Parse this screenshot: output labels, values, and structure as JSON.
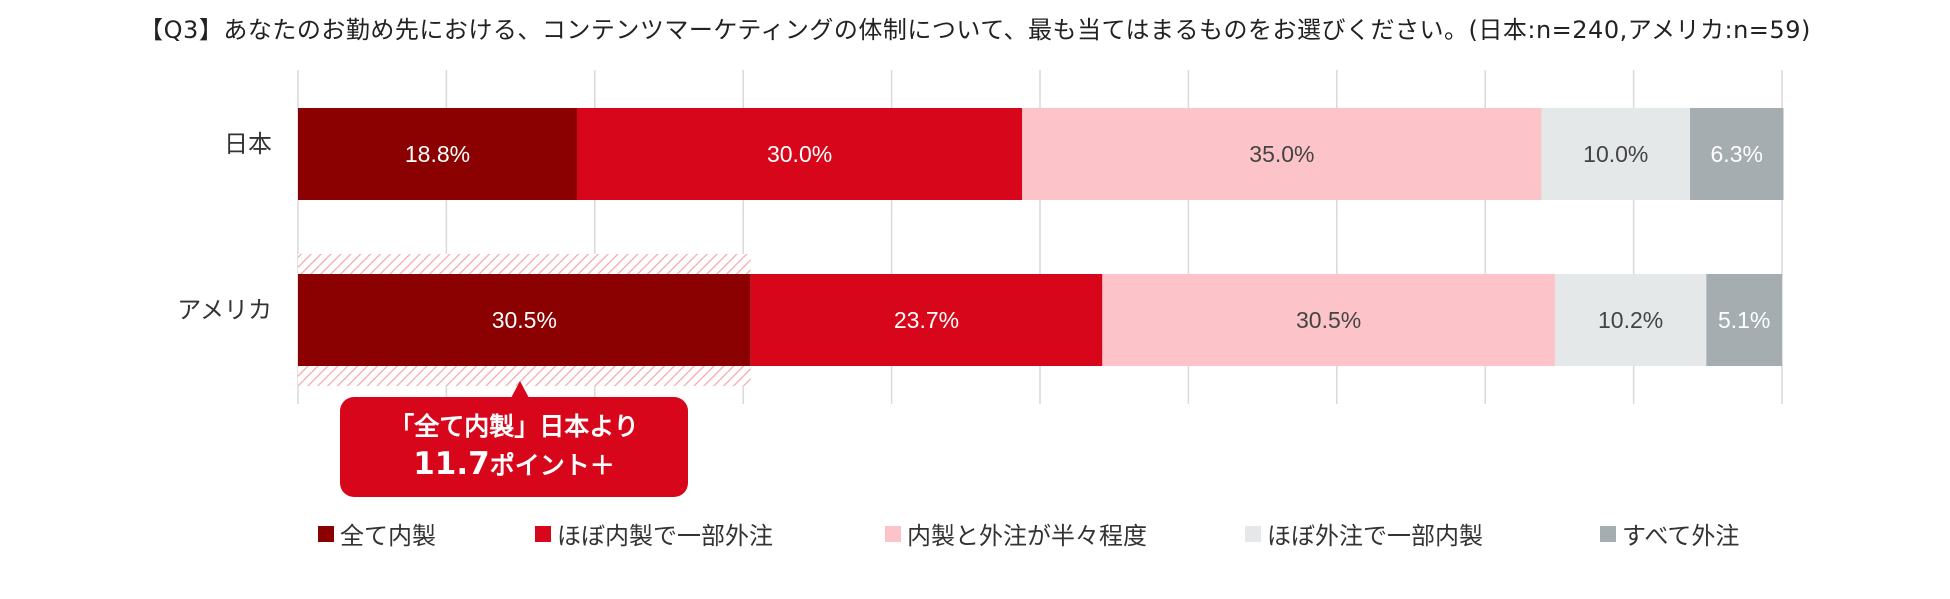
{
  "title": "【Q3】あなたのお勤め先における、コンテンツマーケティングの体制について、最も当てはまるものをお選びください。(日本:n=240,アメリカ:n=59)",
  "chart_data": {
    "type": "bar",
    "orientation": "horizontal",
    "stacked": "100%",
    "categories": [
      "日本",
      "アメリカ"
    ],
    "series": [
      {
        "name": "全て内製",
        "values": [
          18.8,
          30.5
        ],
        "color": "#8b0000"
      },
      {
        "name": "ほぼ内製で一部外注",
        "values": [
          30.0,
          23.7
        ],
        "color": "#d7061a"
      },
      {
        "name": "内製と外注が半々程度",
        "values": [
          35.0,
          30.5
        ],
        "color": "#fcc4c8"
      },
      {
        "name": "ほぼ外注で一部内製",
        "values": [
          10.0,
          10.2
        ],
        "color": "#e5e8e8"
      },
      {
        "name": "すべて外注",
        "values": [
          6.3,
          5.1
        ],
        "color": "#a5adb1"
      }
    ],
    "data_labels": [
      [
        "18.8%",
        "30.0%",
        "35.0%",
        "10.0%",
        "6.3%"
      ],
      [
        "30.5%",
        "23.7%",
        "30.5%",
        "10.2%",
        "5.1%"
      ]
    ],
    "xlim": [
      0,
      100
    ],
    "grid": true,
    "legend_position": "bottom",
    "annotation": {
      "line1": "「全て内製」日本より",
      "value": "11.7",
      "suffix": "ポイント＋",
      "color": "#d7061a"
    }
  }
}
